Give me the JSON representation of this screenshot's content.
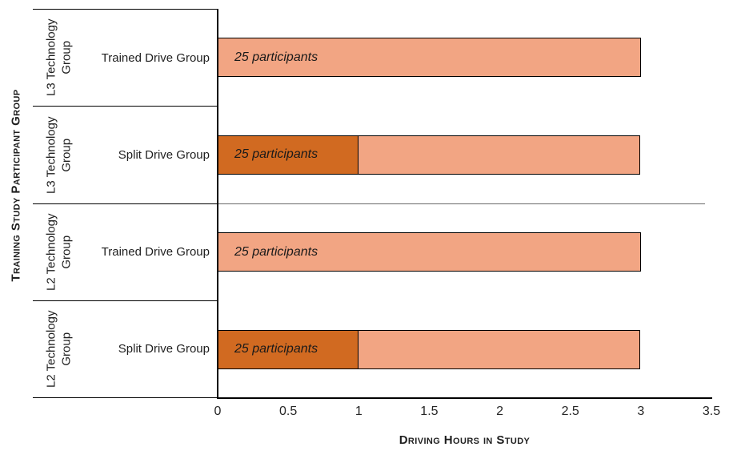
{
  "chart_data": {
    "type": "bar",
    "orientation": "horizontal",
    "stacked": true,
    "xlabel": "Driving Hours in Study",
    "ylabel": "Training  Study Participant Group",
    "xlim": [
      0,
      3.5
    ],
    "grid": false,
    "legend": "none",
    "x_ticks": [
      {
        "value": 0,
        "label": "0"
      },
      {
        "value": 0.5,
        "label": "0.5"
      },
      {
        "value": 1,
        "label": "1"
      },
      {
        "value": 1.5,
        "label": "1.5"
      },
      {
        "value": 2,
        "label": "2"
      },
      {
        "value": 2.5,
        "label": "2.5"
      },
      {
        "value": 3,
        "label": "3"
      },
      {
        "value": 3.5,
        "label": "3.5"
      }
    ],
    "colors": {
      "light_segment": "#F2A583",
      "dark_segment": "#D16A21",
      "bar_border": "#000000"
    },
    "rows": [
      {
        "group": "L3 Technology Group",
        "category": "Trained Drive Group",
        "bar_label": "25 participants",
        "total_hours": 3,
        "segments": [
          {
            "value": 3,
            "color": "#F2A583"
          }
        ]
      },
      {
        "group": "L3 Technology Group",
        "category": "Split Drive Group",
        "bar_label": "25 participants",
        "total_hours": 3,
        "segments": [
          {
            "value": 1,
            "color": "#D16A21"
          },
          {
            "value": 2,
            "color": "#F2A583"
          }
        ]
      },
      {
        "group": "L2 Technology Group",
        "category": "Trained Drive Group",
        "bar_label": "25 participants",
        "total_hours": 3,
        "segments": [
          {
            "value": 3,
            "color": "#F2A583"
          }
        ]
      },
      {
        "group": "L2 Technology Group",
        "category": "Split Drive Group",
        "bar_label": "25 participants",
        "total_hours": 3,
        "segments": [
          {
            "value": 1,
            "color": "#D16A21"
          },
          {
            "value": 2,
            "color": "#F2A583"
          }
        ]
      }
    ]
  }
}
